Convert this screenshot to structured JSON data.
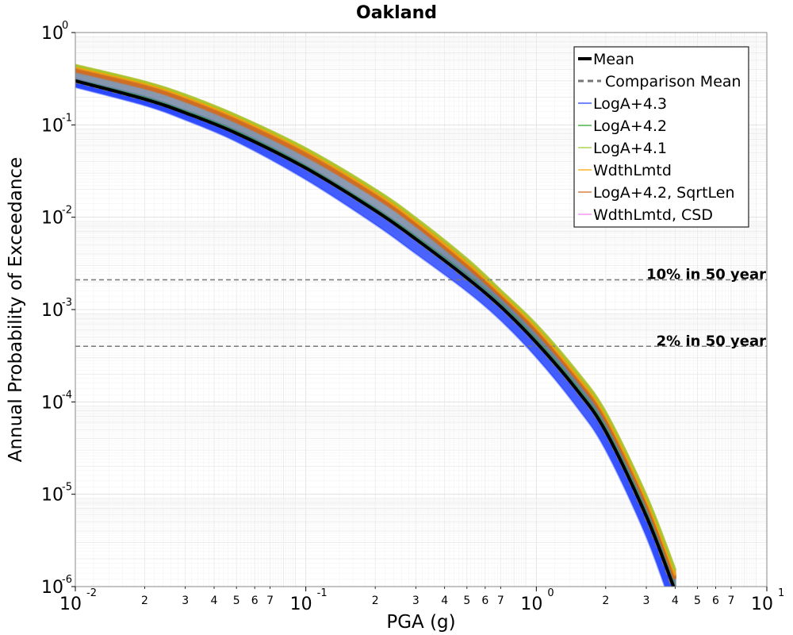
{
  "chart_data": {
    "type": "line",
    "title": "Oakland",
    "xlabel": "PGA (g)",
    "ylabel": "Annual Probability of Exceedance",
    "xscale": "log",
    "yscale": "log",
    "xlim": [
      0.01,
      10
    ],
    "ylim": [
      1e-06,
      1
    ],
    "grid": true,
    "legend_position": "top-right",
    "x_major_ticks": [
      {
        "base": "10",
        "exp": "-2"
      },
      {
        "base": "10",
        "exp": "-1"
      },
      {
        "base": "10",
        "exp": "0"
      },
      {
        "base": "10",
        "exp": "1"
      }
    ],
    "x_minor_tick_labels": [
      "2",
      "3",
      "4",
      "5",
      "6",
      "7"
    ],
    "y_major_ticks": [
      {
        "base": "10",
        "exp": "0"
      },
      {
        "base": "10",
        "exp": "-1"
      },
      {
        "base": "10",
        "exp": "-2"
      },
      {
        "base": "10",
        "exp": "-3"
      },
      {
        "base": "10",
        "exp": "-4"
      },
      {
        "base": "10",
        "exp": "-5"
      },
      {
        "base": "10",
        "exp": "-6"
      }
    ],
    "x": [
      0.01,
      0.02,
      0.03,
      0.05,
      0.1,
      0.2,
      0.3,
      0.5,
      0.7,
      1.0,
      1.5,
      2.0,
      3.0,
      4.0
    ],
    "series": [
      {
        "name": "Mean",
        "style": "solid",
        "color": "#000000",
        "values": [
          0.3,
          0.19,
          0.135,
          0.081,
          0.034,
          0.0118,
          0.0058,
          0.0022,
          0.00108,
          0.00044,
          0.000135,
          4.8e-05,
          5.8e-06,
          9e-07
        ]
      },
      {
        "name": "Comparison Mean",
        "style": "dashed",
        "color": "#777777",
        "values": [
          0.29,
          0.185,
          0.132,
          0.079,
          0.033,
          0.0114,
          0.0056,
          0.0021,
          0.00103,
          0.00042,
          0.000128,
          4.5e-05,
          5.3e-06,
          8e-07
        ]
      },
      {
        "name": "LogA+4.3",
        "style": "thin",
        "color": "#1f3fff",
        "values": [
          0.26,
          0.165,
          0.115,
          0.067,
          0.026,
          0.0085,
          0.0041,
          0.0016,
          0.00078,
          0.00031,
          9e-05,
          3.1e-05,
          3.6e-06,
          5e-07
        ]
      },
      {
        "name": "LogA+4.2",
        "style": "thin",
        "color": "#2ca02c",
        "values": [
          0.31,
          0.2,
          0.142,
          0.086,
          0.036,
          0.0125,
          0.0062,
          0.0024,
          0.00118,
          0.00048,
          0.000148,
          5.3e-05,
          6.5e-06,
          1e-06
        ]
      },
      {
        "name": "LogA+4.1",
        "style": "thin",
        "color": "#9acd32",
        "values": [
          0.44,
          0.29,
          0.21,
          0.126,
          0.055,
          0.0198,
          0.0097,
          0.0035,
          0.0016,
          0.00068,
          0.00021,
          7.6e-05,
          9.5e-06,
          1.5e-06
        ]
      },
      {
        "name": "WdthLmtd",
        "style": "thin",
        "color": "#ffa500",
        "values": [
          0.42,
          0.28,
          0.2,
          0.12,
          0.052,
          0.0185,
          0.009,
          0.0032,
          0.0015,
          0.00063,
          0.00019,
          7e-05,
          8.6e-06,
          1.3e-06
        ]
      },
      {
        "name": "LogA+4.2, SqrtLen",
        "style": "thin",
        "color": "#d2691e",
        "values": [
          0.38,
          0.25,
          0.18,
          0.107,
          0.046,
          0.0165,
          0.0081,
          0.0029,
          0.00138,
          0.00057,
          0.000175,
          6.3e-05,
          7.8e-06,
          1.2e-06
        ]
      },
      {
        "name": "WdthLmtd, CSD",
        "style": "thin",
        "color": "#ee82ee",
        "values": [
          0.3,
          0.19,
          0.135,
          0.081,
          0.034,
          0.0118,
          0.0058,
          0.0022,
          0.00108,
          0.00044,
          0.000135,
          4.8e-05,
          5.8e-06,
          9e-07
        ]
      }
    ],
    "reference_lines": [
      {
        "label": "10% in 50 year",
        "y": 0.0021
      },
      {
        "label": "2% in 50 year",
        "y": 0.0004
      }
    ]
  }
}
